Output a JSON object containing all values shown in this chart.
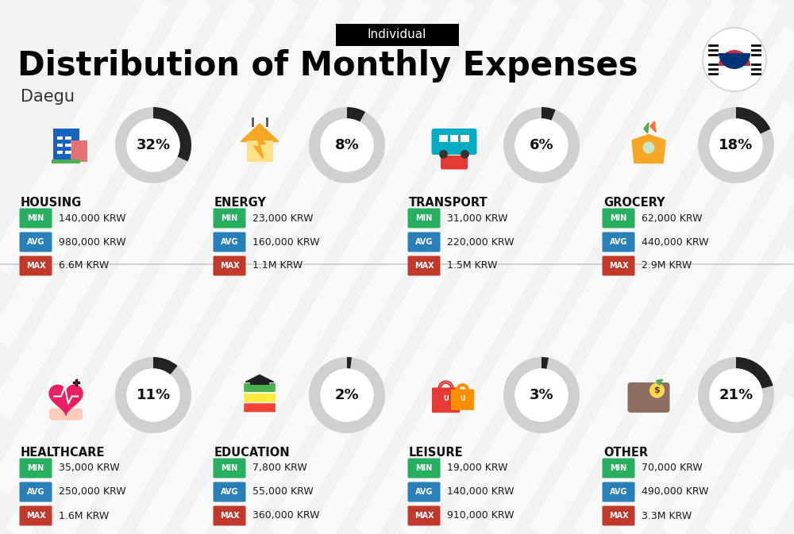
{
  "title": "Distribution of Monthly Expenses",
  "subtitle": "Individual",
  "city": "Daegu",
  "bg_color": "#f2f2f2",
  "categories": [
    {
      "name": "HOUSING",
      "percent": 32,
      "min": "140,000 KRW",
      "avg": "980,000 KRW",
      "max": "6.6M KRW",
      "row": 0,
      "col": 0
    },
    {
      "name": "ENERGY",
      "percent": 8,
      "min": "23,000 KRW",
      "avg": "160,000 KRW",
      "max": "1.1M KRW",
      "row": 0,
      "col": 1
    },
    {
      "name": "TRANSPORT",
      "percent": 6,
      "min": "31,000 KRW",
      "avg": "220,000 KRW",
      "max": "1.5M KRW",
      "row": 0,
      "col": 2
    },
    {
      "name": "GROCERY",
      "percent": 18,
      "min": "62,000 KRW",
      "avg": "440,000 KRW",
      "max": "2.9M KRW",
      "row": 0,
      "col": 3
    },
    {
      "name": "HEALTHCARE",
      "percent": 11,
      "min": "35,000 KRW",
      "avg": "250,000 KRW",
      "max": "1.6M KRW",
      "row": 1,
      "col": 0
    },
    {
      "name": "EDUCATION",
      "percent": 2,
      "min": "7,800 KRW",
      "avg": "55,000 KRW",
      "max": "360,000 KRW",
      "row": 1,
      "col": 1
    },
    {
      "name": "LEISURE",
      "percent": 3,
      "min": "19,000 KRW",
      "avg": "140,000 KRW",
      "max": "910,000 KRW",
      "row": 1,
      "col": 2
    },
    {
      "name": "OTHER",
      "percent": 21,
      "min": "70,000 KRW",
      "avg": "490,000 KRW",
      "max": "3.3M KRW",
      "row": 1,
      "col": 3
    }
  ],
  "colors": {
    "min_bg": "#27ae60",
    "avg_bg": "#2980b9",
    "max_bg": "#c0392b",
    "value_text": "#1a1a1a",
    "category_text": "#111111",
    "arc_filled": "#222222",
    "arc_bg": "#d0d0d0",
    "percent_text": "#111111",
    "divider": "#cccccc",
    "stripe": "#e8e8e8"
  }
}
